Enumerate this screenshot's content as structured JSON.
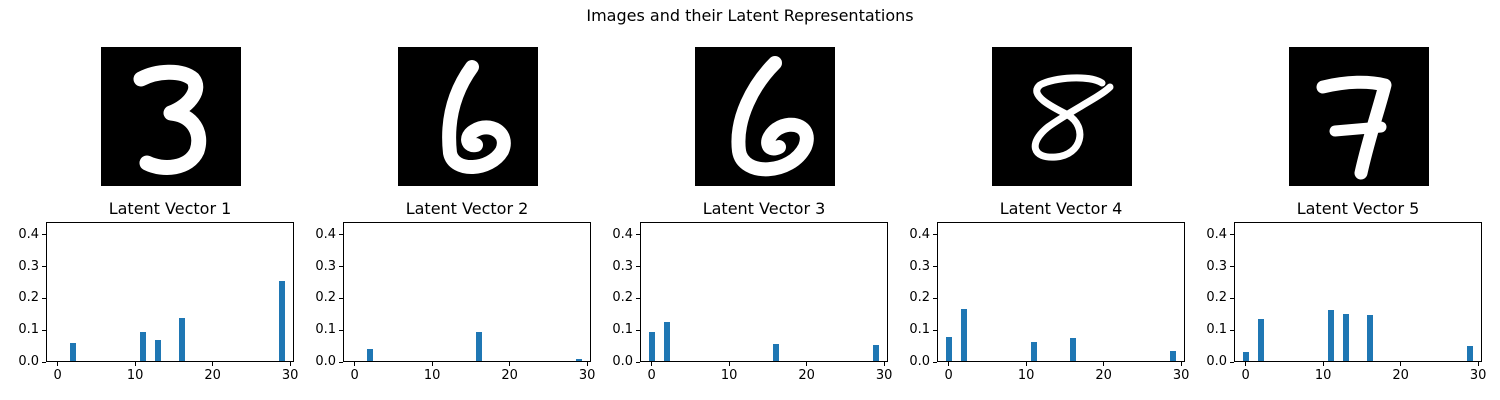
{
  "figure": {
    "title": "Images and their Latent Representations"
  },
  "colors": {
    "bar": "#1f77b4",
    "image_bg": "#000000",
    "stroke": "#ffffff"
  },
  "digit_icons": [
    "digit-3-icon",
    "digit-6-icon",
    "digit-6-icon",
    "digit-8-icon",
    "digit-7-icon"
  ],
  "chart_data": [
    {
      "type": "bar",
      "title": "Latent Vector 1",
      "ylim": [
        0,
        0.44
      ],
      "xlim": [
        -1.5,
        30.5
      ],
      "yticks": [
        "0.0",
        "0.1",
        "0.2",
        "0.3",
        "0.4"
      ],
      "xticks": [
        "0",
        "10",
        "20",
        "30"
      ],
      "x": [
        2,
        11,
        13,
        16,
        29
      ],
      "values": [
        0.06,
        0.095,
        0.07,
        0.138,
        0.255
      ]
    },
    {
      "type": "bar",
      "title": "Latent Vector 2",
      "ylim": [
        0,
        0.44
      ],
      "xlim": [
        -1.5,
        30.5
      ],
      "yticks": [
        "0.0",
        "0.1",
        "0.2",
        "0.3",
        "0.4"
      ],
      "xticks": [
        "0",
        "10",
        "20",
        "30"
      ],
      "x": [
        2,
        16,
        29
      ],
      "values": [
        0.042,
        0.093,
        0.008
      ]
    },
    {
      "type": "bar",
      "title": "Latent Vector 3",
      "ylim": [
        0,
        0.44
      ],
      "xlim": [
        -1.5,
        30.5
      ],
      "yticks": [
        "0.0",
        "0.1",
        "0.2",
        "0.3",
        "0.4"
      ],
      "xticks": [
        "0",
        "10",
        "20",
        "30"
      ],
      "x": [
        0,
        2,
        16,
        29
      ],
      "values": [
        0.093,
        0.125,
        0.058,
        0.055
      ]
    },
    {
      "type": "bar",
      "title": "Latent Vector 4",
      "ylim": [
        0,
        0.44
      ],
      "xlim": [
        -1.5,
        30.5
      ],
      "yticks": [
        "0.0",
        "0.1",
        "0.2",
        "0.3",
        "0.4"
      ],
      "xticks": [
        "0",
        "10",
        "20",
        "30"
      ],
      "x": [
        0,
        2,
        11,
        16,
        29
      ],
      "values": [
        0.08,
        0.168,
        0.062,
        0.077,
        0.034
      ]
    },
    {
      "type": "bar",
      "title": "Latent Vector 5",
      "ylim": [
        0,
        0.44
      ],
      "xlim": [
        -1.5,
        30.5
      ],
      "yticks": [
        "0.0",
        "0.1",
        "0.2",
        "0.3",
        "0.4"
      ],
      "xticks": [
        "0",
        "10",
        "20",
        "30"
      ],
      "x": [
        0,
        2,
        11,
        13,
        16,
        29
      ],
      "values": [
        0.033,
        0.135,
        0.165,
        0.15,
        0.148,
        0.05
      ]
    }
  ]
}
